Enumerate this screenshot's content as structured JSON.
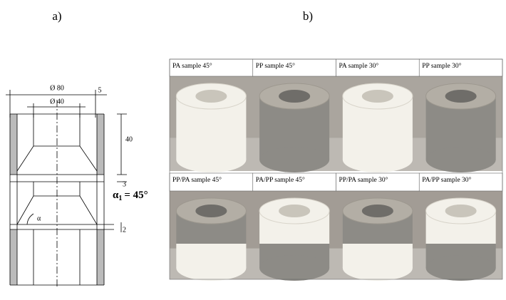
{
  "panels": {
    "a": {
      "label": "a)"
    },
    "b": {
      "label": "b)"
    }
  },
  "drawing": {
    "outer_diameter": "Ø 80",
    "inner_diameter": "Ø 40",
    "wall": "5",
    "height": "40",
    "gap_top": "3",
    "gap_bottom": "2",
    "angle_symbol": "α",
    "angle_note": {
      "symbol": "α",
      "subscript": "1",
      "text": "= 45°"
    }
  },
  "photos": {
    "rows": [
      [
        "PA sample 45°",
        "PP sample 45°",
        "PA sample 30°",
        "PP sample 30°"
      ],
      [
        "PP/PA sample 45°",
        "PA/PP sample 45°",
        "PP/PA sample 30°",
        "PA/PP sample 30°"
      ]
    ]
  }
}
